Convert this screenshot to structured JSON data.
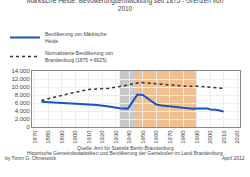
{
  "chart_data": {
    "type": "line",
    "title": "Märkische Heide: Bevölkerungsentwicklung seit 1875 - Grenzen von\n2010",
    "x": [
      1875,
      1880,
      1885,
      1890,
      1895,
      1900,
      1905,
      1910,
      1916,
      1925,
      1933,
      1939,
      1946,
      1950,
      1955,
      1960,
      1964,
      1971,
      1981,
      1987,
      1990,
      1993,
      1995,
      1998,
      2000,
      2002,
      2004,
      2006,
      2008,
      2010
    ],
    "series": [
      {
        "name": "Bevölkerung von Märkische\nHeide",
        "color": "#1a52c8",
        "line_style": "solid",
        "values": [
          6300,
          6200,
          6050,
          5950,
          5850,
          5750,
          5700,
          5650,
          5500,
          5100,
          4700,
          4600,
          8100,
          8000,
          6800,
          5600,
          5400,
          5100,
          4750,
          4550,
          4600,
          4650,
          4700,
          4600,
          4400,
          4400,
          4300,
          4200,
          4100,
          3850
        ]
      },
      {
        "name": "Normalisierte Bevölkerung von\nBrandenburg (1875 = 6625)",
        "color": "#333333",
        "line_style": "dotted",
        "values": [
          6625,
          7100,
          7500,
          7900,
          8300,
          8700,
          9100,
          9400,
          9500,
          9700,
          10100,
          10600,
          11000,
          11100,
          10900,
          10700,
          10700,
          10500,
          10200,
          10100,
          10200,
          10100,
          10150,
          10100,
          10050,
          9900,
          9850,
          9750,
          9700,
          9750
        ]
      }
    ],
    "xlim": [
      1868,
      2022
    ],
    "xticks": [
      1870,
      1880,
      1890,
      1900,
      1910,
      1920,
      1930,
      1940,
      1950,
      1960,
      1970,
      1980,
      1990,
      2000,
      2010,
      2020
    ],
    "ylim": [
      0,
      14000
    ],
    "yticks": [
      0,
      {
        "value": 2000,
        "label": "2.000"
      },
      {
        "value": 4000,
        "label": "4.000"
      },
      {
        "value": 6000,
        "label": "6.000"
      },
      {
        "value": 8000,
        "label": "8.000"
      },
      {
        "value": 10000,
        "label": "10.000"
      },
      {
        "value": 12000,
        "label": "12.000"
      },
      {
        "value": 14000,
        "label": "14.000"
      }
    ],
    "grid": true,
    "legend": "top",
    "shaded_ranges": [
      {
        "start": 1933,
        "end": 1945,
        "color": "#c8c8c8"
      },
      {
        "start": 1945,
        "end": 1990,
        "color": "#f0c090"
      }
    ],
    "annotations": [
      "Quelle: Amt für Statistik Berlin-Brandenburg",
      "Historische Gemeindestatistiken und Bevölkerung der Gemeinden im Land Brandenburg",
      "by Timm G. Ohnesorck",
      "April 2012"
    ]
  }
}
